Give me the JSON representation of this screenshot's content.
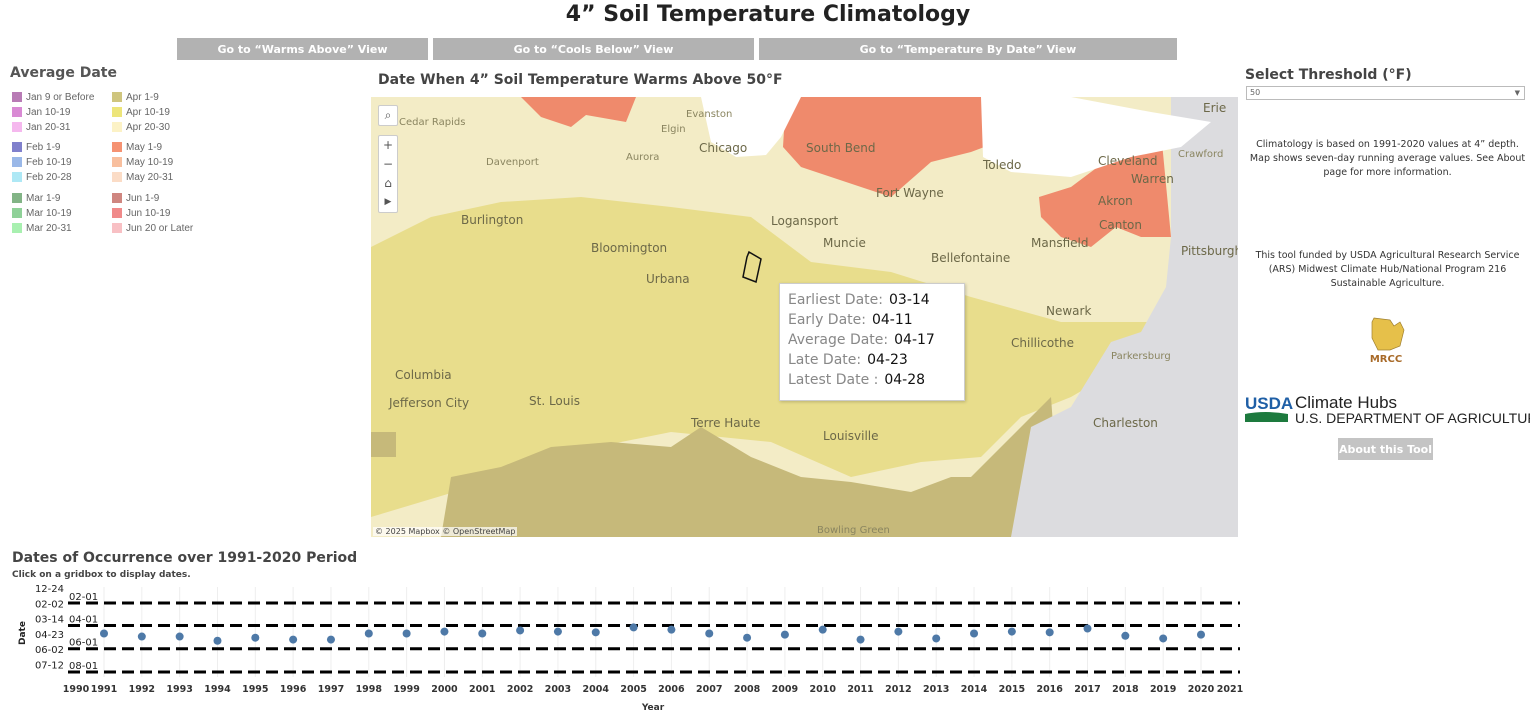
{
  "title": "4” Soil Temperature Climatology",
  "nav": [
    {
      "label": "Go to “Warms Above” View"
    },
    {
      "label": "Go to “Cools Below” View"
    },
    {
      "label": "Go to “Temperature By Date” View"
    }
  ],
  "legend": {
    "title": "Average Date",
    "items": [
      {
        "label": "Jan 9 or Before",
        "color": "#b87bb5"
      },
      {
        "label": "Jan 10-19",
        "color": "#d98ad4"
      },
      {
        "label": "Jan 20-31",
        "color": "#f5b8ee"
      },
      {
        "label": "Feb 1-9",
        "color": "#8080cc"
      },
      {
        "label": "Feb 10-19",
        "color": "#9ab8e8"
      },
      {
        "label": "Feb 20-28",
        "color": "#aee8f5"
      },
      {
        "label": "Mar 1-9",
        "color": "#82b486"
      },
      {
        "label": "Mar 10-19",
        "color": "#8fd198"
      },
      {
        "label": "Mar 20-31",
        "color": "#a8f0b0"
      },
      {
        "label": "Apr 1-9",
        "color": "#cfc57e"
      },
      {
        "label": "Apr 10-19",
        "color": "#ede57a"
      },
      {
        "label": "Apr 20-30",
        "color": "#fcf2c6"
      },
      {
        "label": "May 1-9",
        "color": "#f59272"
      },
      {
        "label": "May 10-19",
        "color": "#f8bf9e"
      },
      {
        "label": "May 20-31",
        "color": "#fbdcc6"
      },
      {
        "label": "Jun 1-9",
        "color": "#cf8680"
      },
      {
        "label": "Jun 10-19",
        "color": "#f08a8a"
      },
      {
        "label": "Jun 20 or Later",
        "color": "#f8c0c4"
      }
    ]
  },
  "map": {
    "title": "Date When 4” Soil Temperature Warms Above 50°F",
    "attribution": "© 2025 Mapbox  © OpenStreetMap",
    "cities": [
      "Cedar Rapids",
      "Elgin",
      "Evanston",
      "Chicago",
      "Davenport",
      "Aurora",
      "South Bend",
      "Toledo",
      "Cleveland",
      "Erie",
      "Fort Wayne",
      "Akron",
      "Canton",
      "Warren",
      "Logansport",
      "Mansfield",
      "Burlington",
      "Bloomington",
      "Urbana",
      "Muncie",
      "Bellefontaine",
      "Pittsburgh",
      "Newark",
      "Terre Haute",
      "Columbia",
      "Jefferson City",
      "St. Louis",
      "Chillicothe",
      "Parkersburg",
      "Charleston",
      "Louisville",
      "Bowling Green",
      "Crawford"
    ],
    "tooltip": {
      "rows": [
        {
          "label": "Earliest Date:",
          "value": "03-14"
        },
        {
          "label": "Early Date:",
          "value": "04-11"
        },
        {
          "label": "Average Date:",
          "value": "04-17"
        },
        {
          "label": "Late Date:",
          "value": "04-23"
        },
        {
          "label": "Latest Date :",
          "value": "04-28"
        }
      ]
    },
    "colors": {
      "base": "#f3ecc6",
      "apr10": "#e8dd8c",
      "apr1": "#c6b97a",
      "may1": "#ef8a6c",
      "nodata": "#dcdcdf",
      "water": "#ffffff"
    }
  },
  "right": {
    "threshold_title": "Select Threshold (°F)",
    "threshold_value": "50",
    "info": "Climatology is based on 1991-2020 values at 4” depth.  Map shows seven-day running average values.  See About page for more information.",
    "funding": "This tool funded by USDA Agricultural Research Service (ARS) Midwest Climate Hub/National Program 216 Sustainable Agriculture.",
    "mrcc_logo": "MRCC",
    "usda_logo": "USDA",
    "hubs_line1": "Climate Hubs",
    "hubs_line2": "U.S. DEPARTMENT OF AGRICULTURE",
    "about_label": "About this Tool"
  },
  "chart_data": {
    "type": "scatter",
    "title": "Dates of Occurrence over 1991-2020 Period",
    "subtitle": "Click on a gridbox to display dates.",
    "xlabel": "Year",
    "ylabel": "Date",
    "xlim": [
      1990,
      2021
    ],
    "x_ticks": [
      "1990",
      "1991",
      "1992",
      "1993",
      "1994",
      "1995",
      "1996",
      "1997",
      "1998",
      "1999",
      "2000",
      "2001",
      "2002",
      "2003",
      "2004",
      "2005",
      "2006",
      "2007",
      "2008",
      "2009",
      "2010",
      "2011",
      "2012",
      "2013",
      "2014",
      "2015",
      "2016",
      "2017",
      "2018",
      "2019",
      "2020",
      "2021"
    ],
    "y_ticks": [
      "12-24",
      "02-02",
      "03-14",
      "04-23",
      "06-02",
      "07-12"
    ],
    "y_reversed": true,
    "reference_lines": [
      "02-01",
      "04-01",
      "06-01",
      "08-01"
    ],
    "color": "#4e79a7",
    "points": [
      {
        "x": 1991,
        "y": "04-22"
      },
      {
        "x": 1992,
        "y": "04-30"
      },
      {
        "x": 1993,
        "y": "04-30"
      },
      {
        "x": 1994,
        "y": "05-11"
      },
      {
        "x": 1995,
        "y": "05-03"
      },
      {
        "x": 1996,
        "y": "05-08"
      },
      {
        "x": 1997,
        "y": "05-08"
      },
      {
        "x": 1998,
        "y": "04-22"
      },
      {
        "x": 1999,
        "y": "04-22"
      },
      {
        "x": 2000,
        "y": "04-17"
      },
      {
        "x": 2001,
        "y": "04-22"
      },
      {
        "x": 2002,
        "y": "04-14"
      },
      {
        "x": 2003,
        "y": "04-17"
      },
      {
        "x": 2004,
        "y": "04-19"
      },
      {
        "x": 2005,
        "y": "04-06"
      },
      {
        "x": 2006,
        "y": "04-12"
      },
      {
        "x": 2007,
        "y": "04-22"
      },
      {
        "x": 2008,
        "y": "05-03"
      },
      {
        "x": 2009,
        "y": "04-25"
      },
      {
        "x": 2010,
        "y": "04-12"
      },
      {
        "x": 2011,
        "y": "05-08"
      },
      {
        "x": 2012,
        "y": "04-17"
      },
      {
        "x": 2013,
        "y": "05-05"
      },
      {
        "x": 2014,
        "y": "04-22"
      },
      {
        "x": 2015,
        "y": "04-17"
      },
      {
        "x": 2016,
        "y": "04-19"
      },
      {
        "x": 2017,
        "y": "04-09"
      },
      {
        "x": 2018,
        "y": "04-28"
      },
      {
        "x": 2019,
        "y": "05-05"
      },
      {
        "x": 2020,
        "y": "04-25"
      }
    ]
  }
}
